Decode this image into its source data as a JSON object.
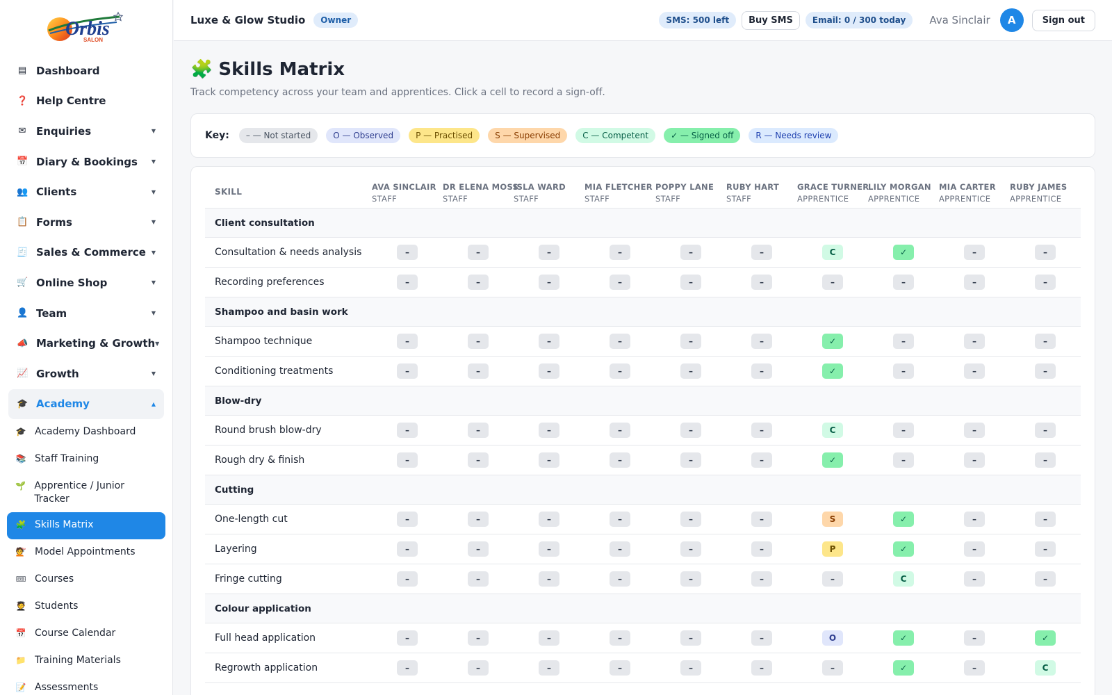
{
  "logo": {
    "text": "Orbis",
    "sub": "SALON"
  },
  "sidebar": {
    "items": [
      {
        "label": "Dashboard",
        "icon": "▤",
        "icon_name": "dashboard-icon",
        "caret": false
      },
      {
        "label": "Help Centre",
        "icon": "❓",
        "icon_name": "help-icon",
        "caret": false
      },
      {
        "label": "Enquiries",
        "icon": "✉",
        "icon_name": "mail-icon",
        "caret": true
      },
      {
        "label": "Diary & Bookings",
        "icon": "📅",
        "icon_name": "calendar-icon",
        "caret": true
      },
      {
        "label": "Clients",
        "icon": "👥",
        "icon_name": "clients-icon",
        "caret": true
      },
      {
        "label": "Forms",
        "icon": "📋",
        "icon_name": "clipboard-icon",
        "caret": true
      },
      {
        "label": "Sales & Commerce",
        "icon": "🧾",
        "icon_name": "receipt-icon",
        "caret": true
      },
      {
        "label": "Online Shop",
        "icon": "🛒",
        "icon_name": "cart-icon",
        "caret": true
      },
      {
        "label": "Team",
        "icon": "👤",
        "icon_name": "team-icon",
        "caret": true
      },
      {
        "label": "Marketing & Growth",
        "icon": "📣",
        "icon_name": "megaphone-icon",
        "caret": true
      },
      {
        "label": "Growth",
        "icon": "📈",
        "icon_name": "chart-up-icon",
        "caret": true
      },
      {
        "label": "Academy",
        "icon": "🎓",
        "icon_name": "graduation-cap-icon",
        "caret": true,
        "open": true
      }
    ],
    "academy_sub": [
      {
        "label": "Academy Dashboard",
        "icon": "🎓",
        "icon_name": "graduation-cap-icon"
      },
      {
        "label": "Staff Training",
        "icon": "📚",
        "icon_name": "books-icon"
      },
      {
        "label": "Apprentice / Junior Tracker",
        "icon": "🌱",
        "icon_name": "seedling-icon"
      },
      {
        "label": "Skills Matrix",
        "icon": "🧩",
        "icon_name": "puzzle-icon",
        "active": true
      },
      {
        "label": "Model Appointments",
        "icon": "💇",
        "icon_name": "haircut-icon"
      },
      {
        "label": "Courses",
        "icon": "🎟",
        "icon_name": "ticket-icon"
      },
      {
        "label": "Students",
        "icon": "🧑‍🎓",
        "icon_name": "student-icon"
      },
      {
        "label": "Course Calendar",
        "icon": "📅",
        "icon_name": "calendar-icon"
      },
      {
        "label": "Training Materials",
        "icon": "📁",
        "icon_name": "folder-icon"
      },
      {
        "label": "Assessments",
        "icon": "📝",
        "icon_name": "memo-icon"
      }
    ]
  },
  "topbar": {
    "studio": "Luxe & Glow Studio",
    "role": "Owner",
    "sms": "SMS: 500 left",
    "buy_sms": "Buy SMS",
    "email": "Email: 0 / 300 today",
    "user": "Ava Sinclair",
    "avatar": "A",
    "sign_out": "Sign out"
  },
  "page": {
    "icon": "🧩",
    "title": "Skills Matrix",
    "subtitle": "Track competency across your team and apprentices. Click a cell to record a sign-off."
  },
  "key": {
    "label": "Key:",
    "items": [
      {
        "text": "– — Not started",
        "bg": "#e5e7eb",
        "fg": "#4b5563"
      },
      {
        "text": "O — Observed",
        "bg": "#e0e6fb",
        "fg": "#2f3e8f"
      },
      {
        "text": "P — Practised",
        "bg": "#fde68a",
        "fg": "#6b4e00"
      },
      {
        "text": "S — Supervised",
        "bg": "#fed7aa",
        "fg": "#8a3d00"
      },
      {
        "text": "C — Competent",
        "bg": "#d1fae5",
        "fg": "#065f46"
      },
      {
        "text": "✓ — Signed off",
        "bg": "#86efac",
        "fg": "#065f46"
      },
      {
        "text": "R — Needs review",
        "bg": "#dbeafe",
        "fg": "#1e40af"
      }
    ]
  },
  "matrix": {
    "skill_header": "Skill",
    "staff": [
      {
        "name": "Ava Sinclair",
        "role": "Staff"
      },
      {
        "name": "Dr Elena Moss",
        "role": "Staff"
      },
      {
        "name": "Isla Ward",
        "role": "Staff"
      },
      {
        "name": "Mia Fletcher",
        "role": "Staff"
      },
      {
        "name": "Poppy Lane",
        "role": "Staff"
      },
      {
        "name": "Ruby Hart",
        "role": "Staff"
      },
      {
        "name": "Grace Turner",
        "role": "Apprentice"
      },
      {
        "name": "Lily Morgan",
        "role": "Apprentice"
      },
      {
        "name": "Mia Carter",
        "role": "Apprentice"
      },
      {
        "name": "Ruby James",
        "role": "Apprentice"
      }
    ],
    "groups": [
      {
        "name": "Client consultation",
        "skills": [
          {
            "name": "Consultation & needs analysis",
            "cells": [
              "–",
              "–",
              "–",
              "–",
              "–",
              "–",
              "C",
              "✓",
              "–",
              "–"
            ]
          },
          {
            "name": "Recording preferences",
            "cells": [
              "–",
              "–",
              "–",
              "–",
              "–",
              "–",
              "–",
              "–",
              "–",
              "–"
            ]
          }
        ]
      },
      {
        "name": "Shampoo and basin work",
        "skills": [
          {
            "name": "Shampoo technique",
            "cells": [
              "–",
              "–",
              "–",
              "–",
              "–",
              "–",
              "✓",
              "–",
              "–",
              "–"
            ]
          },
          {
            "name": "Conditioning treatments",
            "cells": [
              "–",
              "–",
              "–",
              "–",
              "–",
              "–",
              "✓",
              "–",
              "–",
              "–"
            ]
          }
        ]
      },
      {
        "name": "Blow-dry",
        "skills": [
          {
            "name": "Round brush blow-dry",
            "cells": [
              "–",
              "–",
              "–",
              "–",
              "–",
              "–",
              "C",
              "–",
              "–",
              "–"
            ]
          },
          {
            "name": "Rough dry & finish",
            "cells": [
              "–",
              "–",
              "–",
              "–",
              "–",
              "–",
              "✓",
              "–",
              "–",
              "–"
            ]
          }
        ]
      },
      {
        "name": "Cutting",
        "skills": [
          {
            "name": "One-length cut",
            "cells": [
              "–",
              "–",
              "–",
              "–",
              "–",
              "–",
              "S",
              "✓",
              "–",
              "–"
            ]
          },
          {
            "name": "Layering",
            "cells": [
              "–",
              "–",
              "–",
              "–",
              "–",
              "–",
              "P",
              "✓",
              "–",
              "–"
            ]
          },
          {
            "name": "Fringe cutting",
            "cells": [
              "–",
              "–",
              "–",
              "–",
              "–",
              "–",
              "–",
              "C",
              "–",
              "–"
            ]
          }
        ]
      },
      {
        "name": "Colour application",
        "skills": [
          {
            "name": "Full head application",
            "cells": [
              "–",
              "–",
              "–",
              "–",
              "–",
              "–",
              "O",
              "✓",
              "–",
              "✓"
            ]
          },
          {
            "name": "Regrowth application",
            "cells": [
              "–",
              "–",
              "–",
              "–",
              "–",
              "–",
              "–",
              "✓",
              "–",
              "C"
            ]
          }
        ]
      }
    ]
  }
}
